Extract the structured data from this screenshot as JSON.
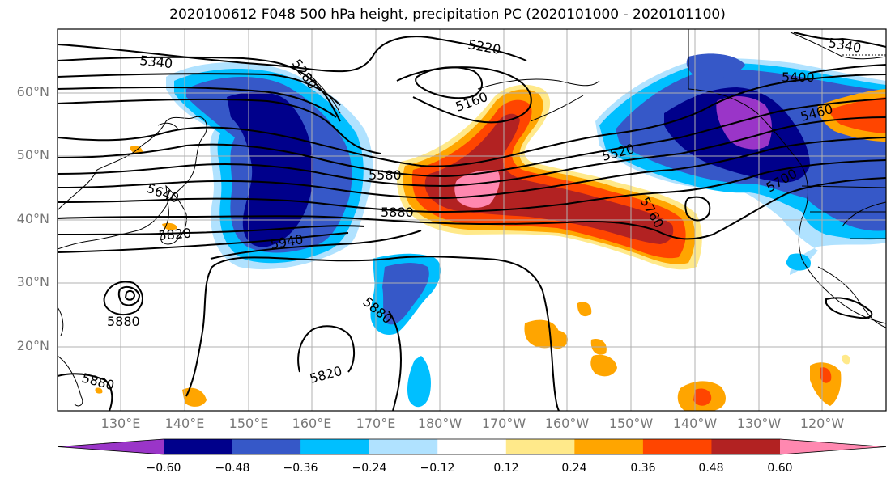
{
  "title": "2020100612 F048 500 hPa height, precipitation PC (2020101000 - 2020101100)",
  "lat_labels": [
    "60°N",
    "50°N",
    "40°N",
    "30°N",
    "20°N"
  ],
  "lon_labels": [
    "130°E",
    "140°E",
    "150°E",
    "160°E",
    "170°E",
    "180°W",
    "170°W",
    "160°W",
    "150°W",
    "140°W",
    "130°W",
    "120°W"
  ],
  "contour_labels": [
    "5340",
    "5280",
    "5220",
    "5160",
    "5340",
    "5400",
    "5460",
    "5520",
    "5580",
    "5640",
    "5880",
    "5820",
    "5940",
    "5760",
    "5700",
    "5880",
    "5880",
    "5820",
    "5880"
  ],
  "colorbar": {
    "ticks": [
      "−0.60",
      "−0.48",
      "−0.36",
      "−0.24",
      "−0.12",
      "0.12",
      "0.24",
      "0.36",
      "0.48",
      "0.60"
    ],
    "colors": [
      "#9a35c8",
      "#00008b",
      "#3658c8",
      "#00bfff",
      "#b0e2ff",
      "#ffffff",
      "#ffe98a",
      "#ffa500",
      "#ff4500",
      "#b22222",
      "#ff88b0"
    ]
  },
  "shading_colors": {
    "neg_strong": "#00008b",
    "neg_mid": "#3658c8",
    "neg_weak": "#00bfff",
    "neg_faint": "#b0e2ff",
    "pos_faint": "#ffe98a",
    "pos_weak": "#ffa500",
    "pos_mid": "#ff4500",
    "pos_strong": "#b22222",
    "pos_max": "#ff88b0",
    "purple": "#9a35c8"
  }
}
